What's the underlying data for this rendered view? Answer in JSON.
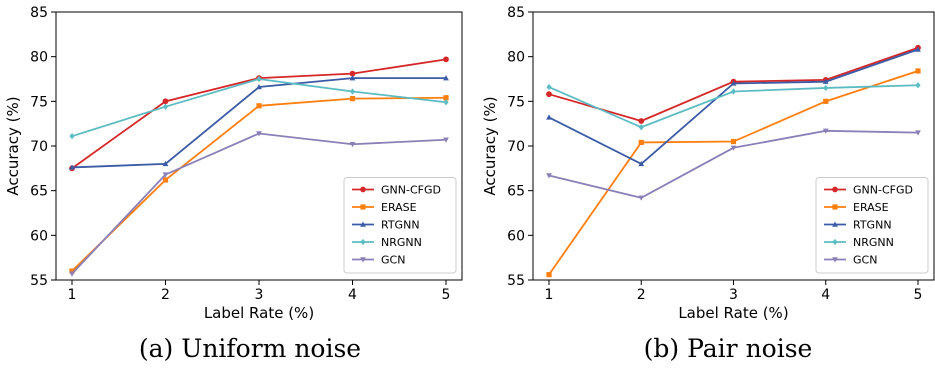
{
  "chart_data": [
    {
      "type": "line",
      "caption": "(a) Uniform noise",
      "xlabel": "Label Rate (%)",
      "ylabel": "Accuracy (%)",
      "x": [
        1,
        2,
        3,
        4,
        5
      ],
      "xticks": [
        "1",
        "2",
        "3",
        "4",
        "5"
      ],
      "ylim": [
        55,
        85
      ],
      "yticks": [
        "55",
        "60",
        "65",
        "70",
        "75",
        "80",
        "85"
      ],
      "grid": false,
      "legend": "lower-right",
      "series": [
        {
          "name": "GNN-CFGD",
          "color": "#d62728",
          "marker": "circle",
          "values": [
            67.5,
            75.0,
            77.6,
            78.1,
            79.7
          ]
        },
        {
          "name": "ERASE",
          "color": "#ff7f0e",
          "marker": "square",
          "values": [
            56.0,
            66.2,
            74.5,
            75.3,
            75.4
          ]
        },
        {
          "name": "RTGNN",
          "color": "#3b5ba5",
          "marker": "triangle-up",
          "values": [
            67.6,
            68.0,
            76.6,
            77.6,
            77.6
          ]
        },
        {
          "name": "NRGNN",
          "color": "#5cbcc3",
          "marker": "diamond",
          "values": [
            71.1,
            74.4,
            77.5,
            76.1,
            74.9
          ]
        },
        {
          "name": "GCN",
          "color": "#8b7fb8",
          "marker": "triangle-down",
          "values": [
            55.7,
            66.8,
            71.4,
            70.2,
            70.7
          ]
        }
      ]
    },
    {
      "type": "line",
      "caption": "(b) Pair noise",
      "xlabel": "Label Rate (%)",
      "ylabel": "Accuracy (%)",
      "x": [
        1,
        2,
        3,
        4,
        5
      ],
      "xticks": [
        "1",
        "2",
        "3",
        "4",
        "5"
      ],
      "ylim": [
        55,
        85
      ],
      "yticks": [
        "55",
        "60",
        "65",
        "70",
        "75",
        "80",
        "85"
      ],
      "grid": false,
      "legend": "lower-right",
      "series": [
        {
          "name": "GNN-CFGD",
          "color": "#d62728",
          "marker": "circle",
          "values": [
            75.8,
            72.8,
            77.2,
            77.4,
            81.0
          ]
        },
        {
          "name": "ERASE",
          "color": "#ff7f0e",
          "marker": "square",
          "values": [
            55.6,
            70.4,
            70.5,
            75.0,
            78.4
          ]
        },
        {
          "name": "RTGNN",
          "color": "#3b5ba5",
          "marker": "triangle-up",
          "values": [
            73.2,
            68.0,
            77.0,
            77.2,
            80.8
          ]
        },
        {
          "name": "NRGNN",
          "color": "#5cbcc3",
          "marker": "diamond",
          "values": [
            76.6,
            72.1,
            76.1,
            76.5,
            76.8
          ]
        },
        {
          "name": "GCN",
          "color": "#8b7fb8",
          "marker": "triangle-down",
          "values": [
            66.7,
            64.2,
            69.8,
            71.7,
            71.5
          ]
        }
      ]
    }
  ]
}
